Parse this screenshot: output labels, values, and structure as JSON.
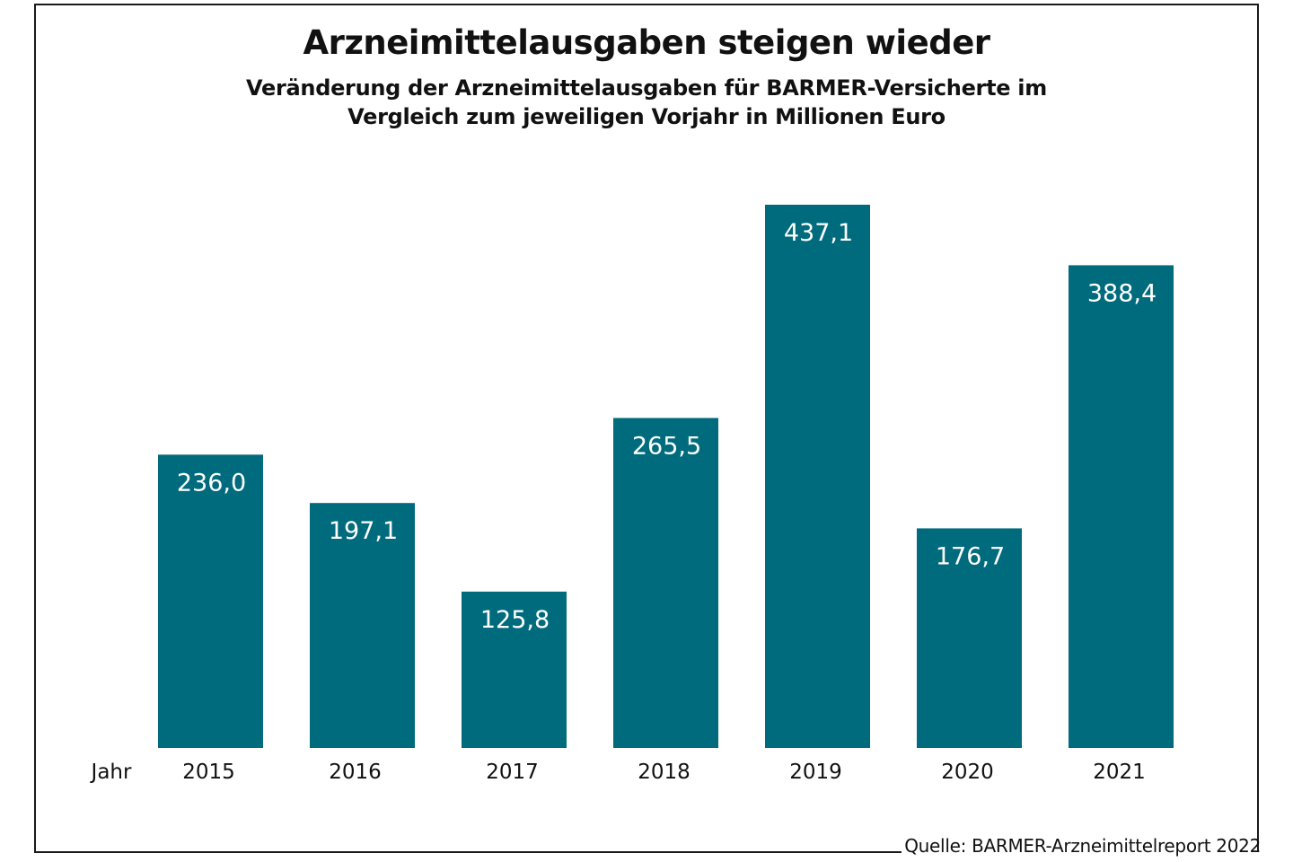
{
  "chart_data": {
    "type": "bar",
    "title": "Arzneimittelausgaben steigen wieder",
    "subtitle_lines": [
      "Veränderung der Arzneimittelausgaben für BARMER-Versicherte im",
      "Vergleich zum jeweiligen Vorjahr in Millionen Euro"
    ],
    "xlabel": "Jahr",
    "ylabel": "",
    "categories": [
      "2015",
      "2016",
      "2017",
      "2018",
      "2019",
      "2020",
      "2021"
    ],
    "values": [
      236.0,
      197.1,
      125.8,
      265.5,
      437.1,
      176.7,
      388.4
    ],
    "value_labels": [
      "236,0",
      "197,1",
      "125,8",
      "265,5",
      "437,1",
      "176,7",
      "388,4"
    ],
    "ylim": [
      0,
      437.1
    ],
    "grid": false,
    "legend": "none",
    "source": "Quelle: BARMER-Arzneimittelreport 2022",
    "bar_color": "#006b7d"
  }
}
